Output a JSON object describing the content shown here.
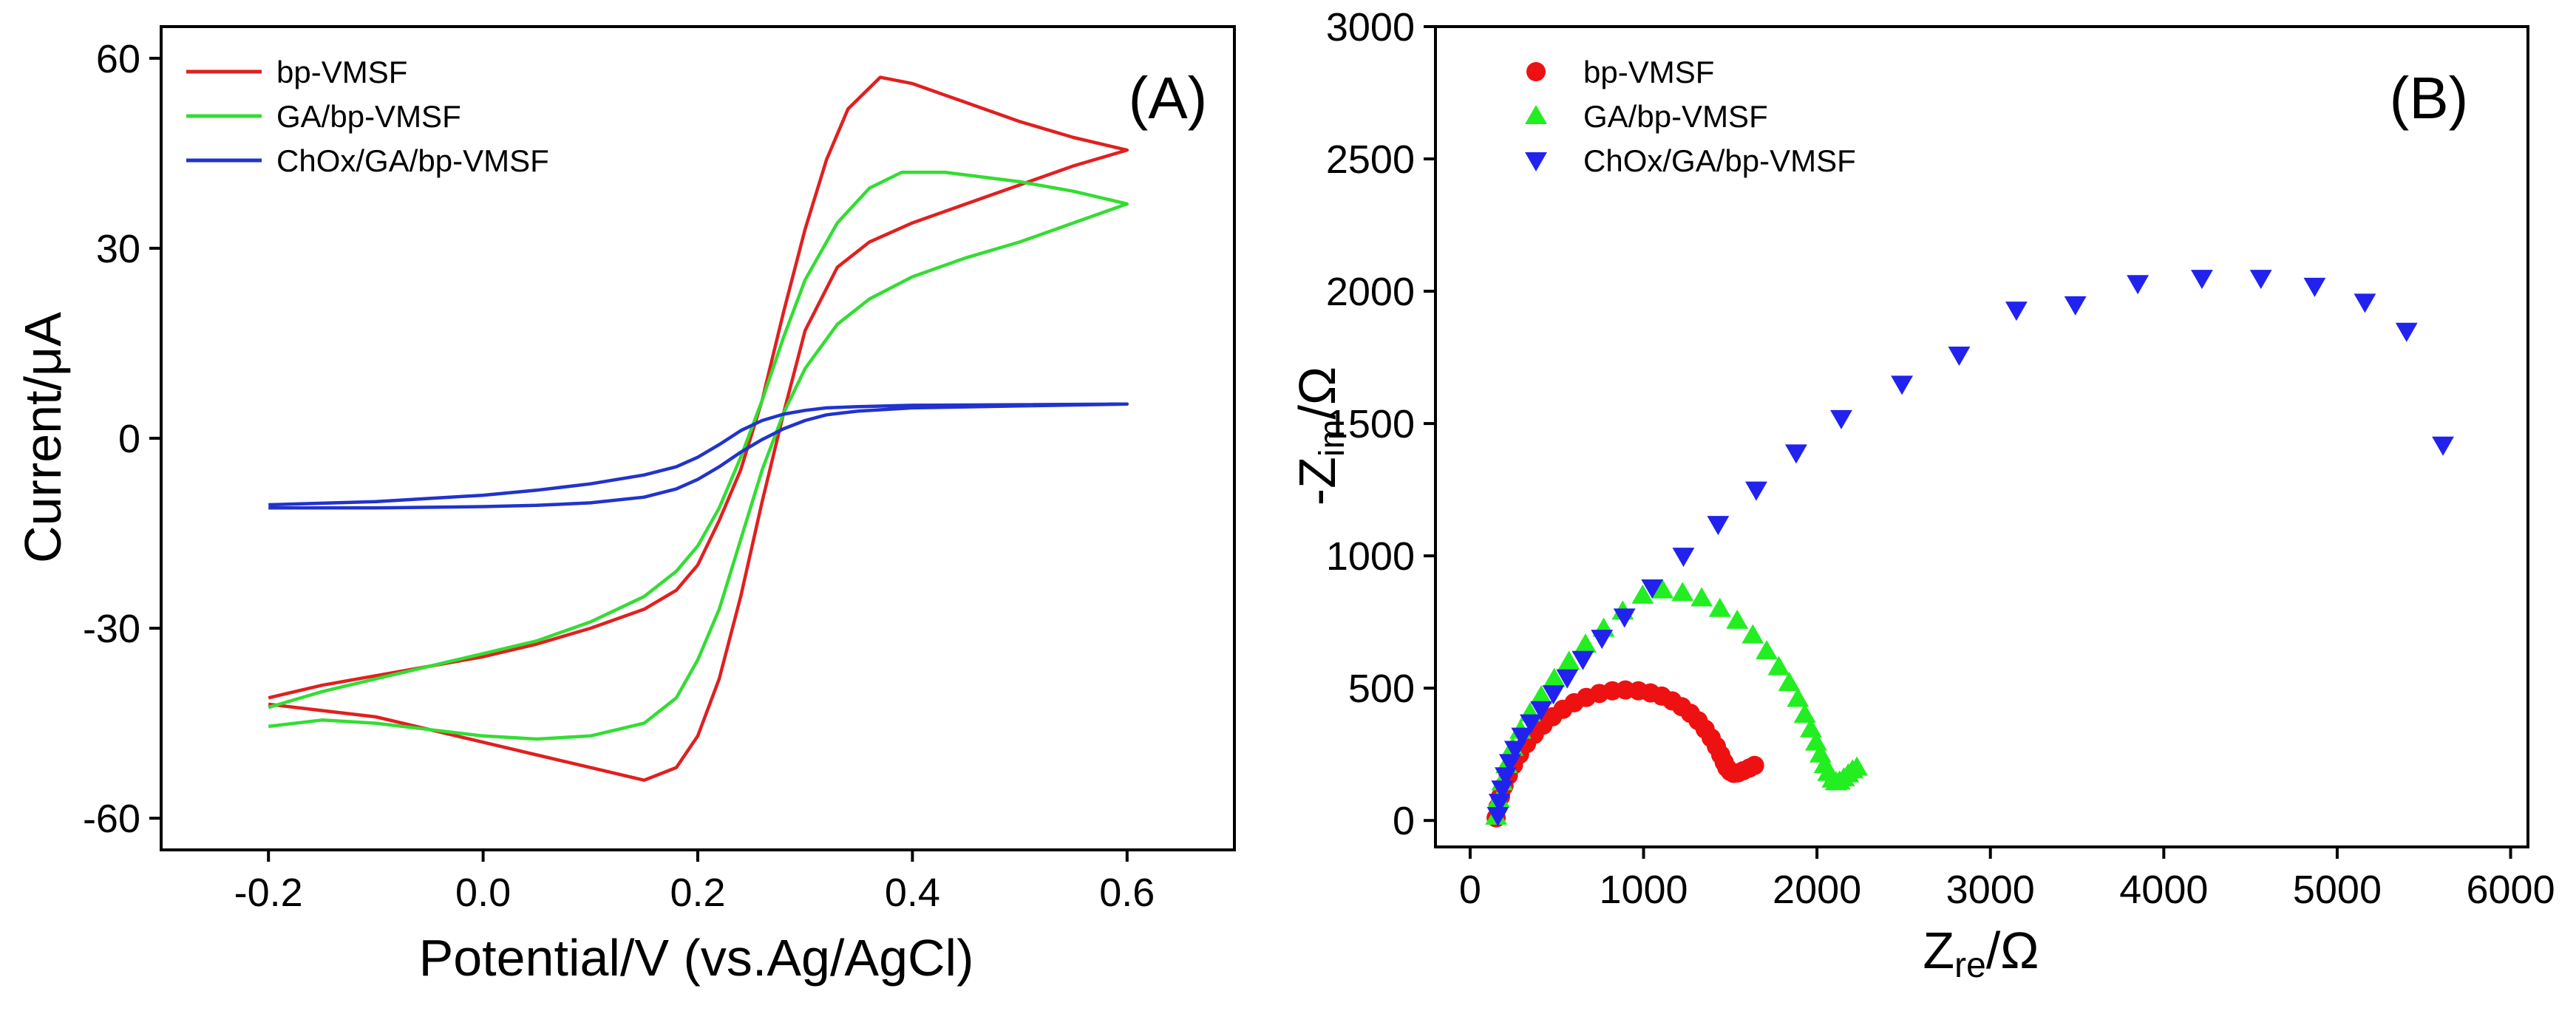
{
  "chart_data": [
    {
      "panel": "(A)",
      "type": "line",
      "title": "",
      "xlabel": "Potential/V (vs.Ag/AgCl)",
      "ylabel": "Current/μA",
      "xlim": [
        -0.3,
        0.7
      ],
      "ylim": [
        -65,
        65
      ],
      "xticks": [
        -0.2,
        0.0,
        0.2,
        0.4,
        0.6
      ],
      "xtick_labels": [
        "-0.2",
        "0.0",
        "0.2",
        "0.4",
        "0.6"
      ],
      "yticks": [
        -60,
        -30,
        0,
        30,
        60
      ],
      "ytick_labels": [
        "-60",
        "-30",
        "0",
        "30",
        "60"
      ],
      "legend_position": "top-left",
      "series": [
        {
          "name": "bp-VMSF",
          "color": "#e02020",
          "x": [
            -0.2,
            -0.15,
            -0.1,
            -0.05,
            0.0,
            0.05,
            0.1,
            0.15,
            0.18,
            0.2,
            0.22,
            0.24,
            0.26,
            0.28,
            0.3,
            0.32,
            0.34,
            0.37,
            0.4,
            0.45,
            0.5,
            0.55,
            0.6,
            0.55,
            0.5,
            0.45,
            0.4,
            0.36,
            0.33,
            0.3,
            0.28,
            0.26,
            0.24,
            0.22,
            0.2,
            0.18,
            0.15,
            0.1,
            0.05,
            0.0,
            -0.05,
            -0.1,
            -0.15,
            -0.2
          ],
          "y": [
            -41,
            -39,
            -37.5,
            -36,
            -34.5,
            -32.5,
            -30,
            -27,
            -24,
            -20,
            -13,
            -5,
            6,
            20,
            33,
            44,
            52,
            57,
            56,
            53,
            50,
            47.5,
            45.5,
            43,
            40,
            37,
            34,
            31,
            27,
            17,
            4,
            -10,
            -25,
            -38,
            -47,
            -52,
            -54,
            -52,
            -50,
            -48,
            -46,
            -44,
            -43,
            -42
          ]
        },
        {
          "name": "GA/bp-VMSF",
          "color": "#33dd33",
          "x": [
            -0.2,
            -0.15,
            -0.1,
            -0.05,
            0.0,
            0.05,
            0.1,
            0.15,
            0.18,
            0.2,
            0.22,
            0.24,
            0.26,
            0.28,
            0.3,
            0.33,
            0.36,
            0.39,
            0.43,
            0.5,
            0.55,
            0.6,
            0.55,
            0.5,
            0.45,
            0.4,
            0.36,
            0.33,
            0.3,
            0.28,
            0.26,
            0.24,
            0.22,
            0.2,
            0.18,
            0.15,
            0.1,
            0.05,
            0.0,
            -0.05,
            -0.1,
            -0.15,
            -0.2
          ],
          "y": [
            -42.5,
            -40,
            -38,
            -36,
            -34,
            -32,
            -29,
            -25,
            -21,
            -17,
            -11,
            -3,
            6,
            16,
            25,
            34,
            39.5,
            42,
            42,
            40.5,
            39,
            37,
            34,
            31,
            28.5,
            25.5,
            22,
            18,
            11,
            4,
            -5,
            -16,
            -27,
            -35,
            -41,
            -45,
            -47,
            -47.5,
            -47,
            -46,
            -45,
            -44.5,
            -45.5
          ]
        },
        {
          "name": "ChOx/GA/bp-VMSF",
          "color": "#2233cc",
          "x": [
            -0.2,
            -0.1,
            0.0,
            0.05,
            0.1,
            0.15,
            0.18,
            0.2,
            0.22,
            0.24,
            0.26,
            0.28,
            0.3,
            0.32,
            0.35,
            0.4,
            0.5,
            0.6,
            0.5,
            0.4,
            0.35,
            0.32,
            0.3,
            0.28,
            0.26,
            0.24,
            0.22,
            0.2,
            0.18,
            0.15,
            0.1,
            0.05,
            0.0,
            -0.1,
            -0.2
          ],
          "y": [
            -10.5,
            -10,
            -9,
            -8.2,
            -7.2,
            -5.8,
            -4.5,
            -3,
            -1,
            1.2,
            2.8,
            3.8,
            4.4,
            4.8,
            5,
            5.2,
            5.3,
            5.4,
            5.1,
            4.8,
            4.3,
            3.7,
            2.8,
            1.5,
            -0.2,
            -2.2,
            -4.5,
            -6.5,
            -8,
            -9.3,
            -10.2,
            -10.6,
            -10.8,
            -11,
            -11
          ]
        }
      ]
    },
    {
      "panel": "(B)",
      "type": "scatter",
      "title": "",
      "xlabel_main": "Z",
      "xlabel_sub": "re",
      "xlabel_tail": "/Ω",
      "ylabel_main": "-Z",
      "ylabel_sub": "im",
      "ylabel_tail": "/Ω",
      "xlim": [
        -200,
        6100
      ],
      "ylim": [
        -100,
        3000
      ],
      "xticks": [
        0,
        1000,
        2000,
        3000,
        4000,
        5000,
        6000
      ],
      "xtick_labels": [
        "0",
        "1000",
        "2000",
        "3000",
        "4000",
        "5000",
        "6000"
      ],
      "yticks": [
        0,
        500,
        1000,
        1500,
        2000,
        2500,
        3000
      ],
      "ytick_labels": [
        "0",
        "500",
        "1000",
        "1500",
        "2000",
        "2500",
        "3000"
      ],
      "legend_position": "top-left",
      "series": [
        {
          "name": "bp-VMSF",
          "color": "#ee1111",
          "marker": "circle",
          "x": [
            150,
            160,
            175,
            195,
            220,
            250,
            285,
            325,
            370,
            420,
            475,
            535,
            600,
            670,
            745,
            820,
            895,
            970,
            1040,
            1105,
            1165,
            1220,
            1270,
            1315,
            1355,
            1390,
            1420,
            1445,
            1465,
            1480,
            1500,
            1520,
            1545,
            1575,
            1610,
            1640
          ],
          "y": [
            10,
            50,
            90,
            130,
            170,
            210,
            250,
            290,
            325,
            360,
            392,
            420,
            445,
            465,
            480,
            490,
            493,
            490,
            482,
            470,
            452,
            430,
            405,
            377,
            345,
            312,
            280,
            248,
            220,
            200,
            185,
            178,
            180,
            188,
            198,
            208
          ]
        },
        {
          "name": "GA/bp-VMSF",
          "color": "#22ee22",
          "marker": "triangle-up",
          "x": [
            150,
            165,
            185,
            210,
            245,
            290,
            345,
            410,
            485,
            570,
            665,
            770,
            880,
            995,
            1110,
            1225,
            1335,
            1440,
            1540,
            1630,
            1710,
            1780,
            1840,
            1890,
            1930,
            1965,
            1995,
            2020,
            2045,
            2065,
            2090,
            2110,
            2130,
            2155,
            2180,
            2205,
            2230
          ],
          "y": [
            15,
            80,
            145,
            210,
            275,
            340,
            405,
            470,
            535,
            600,
            665,
            725,
            790,
            850,
            870,
            860,
            840,
            800,
            755,
            700,
            640,
            580,
            520,
            460,
            400,
            345,
            295,
            250,
            210,
            180,
            155,
            145,
            148,
            160,
            175,
            190,
            200
          ]
        },
        {
          "name": "ChOx/GA/bp-VMSF",
          "color": "#2222ee",
          "marker": "triangle-down",
          "x": [
            160,
            170,
            185,
            205,
            230,
            260,
            300,
            350,
            410,
            480,
            560,
            650,
            760,
            890,
            1050,
            1230,
            1430,
            1650,
            1880,
            2140,
            2490,
            2820,
            3150,
            3490,
            3850,
            4220,
            4560,
            4870,
            5160,
            5400,
            5610
          ],
          "y": [
            20,
            70,
            120,
            170,
            220,
            270,
            320,
            370,
            420,
            480,
            540,
            610,
            690,
            770,
            880,
            1000,
            1120,
            1250,
            1390,
            1520,
            1650,
            1760,
            1930,
            1950,
            2030,
            2050,
            2050,
            2020,
            1960,
            1850,
            1420
          ]
        }
      ]
    }
  ]
}
